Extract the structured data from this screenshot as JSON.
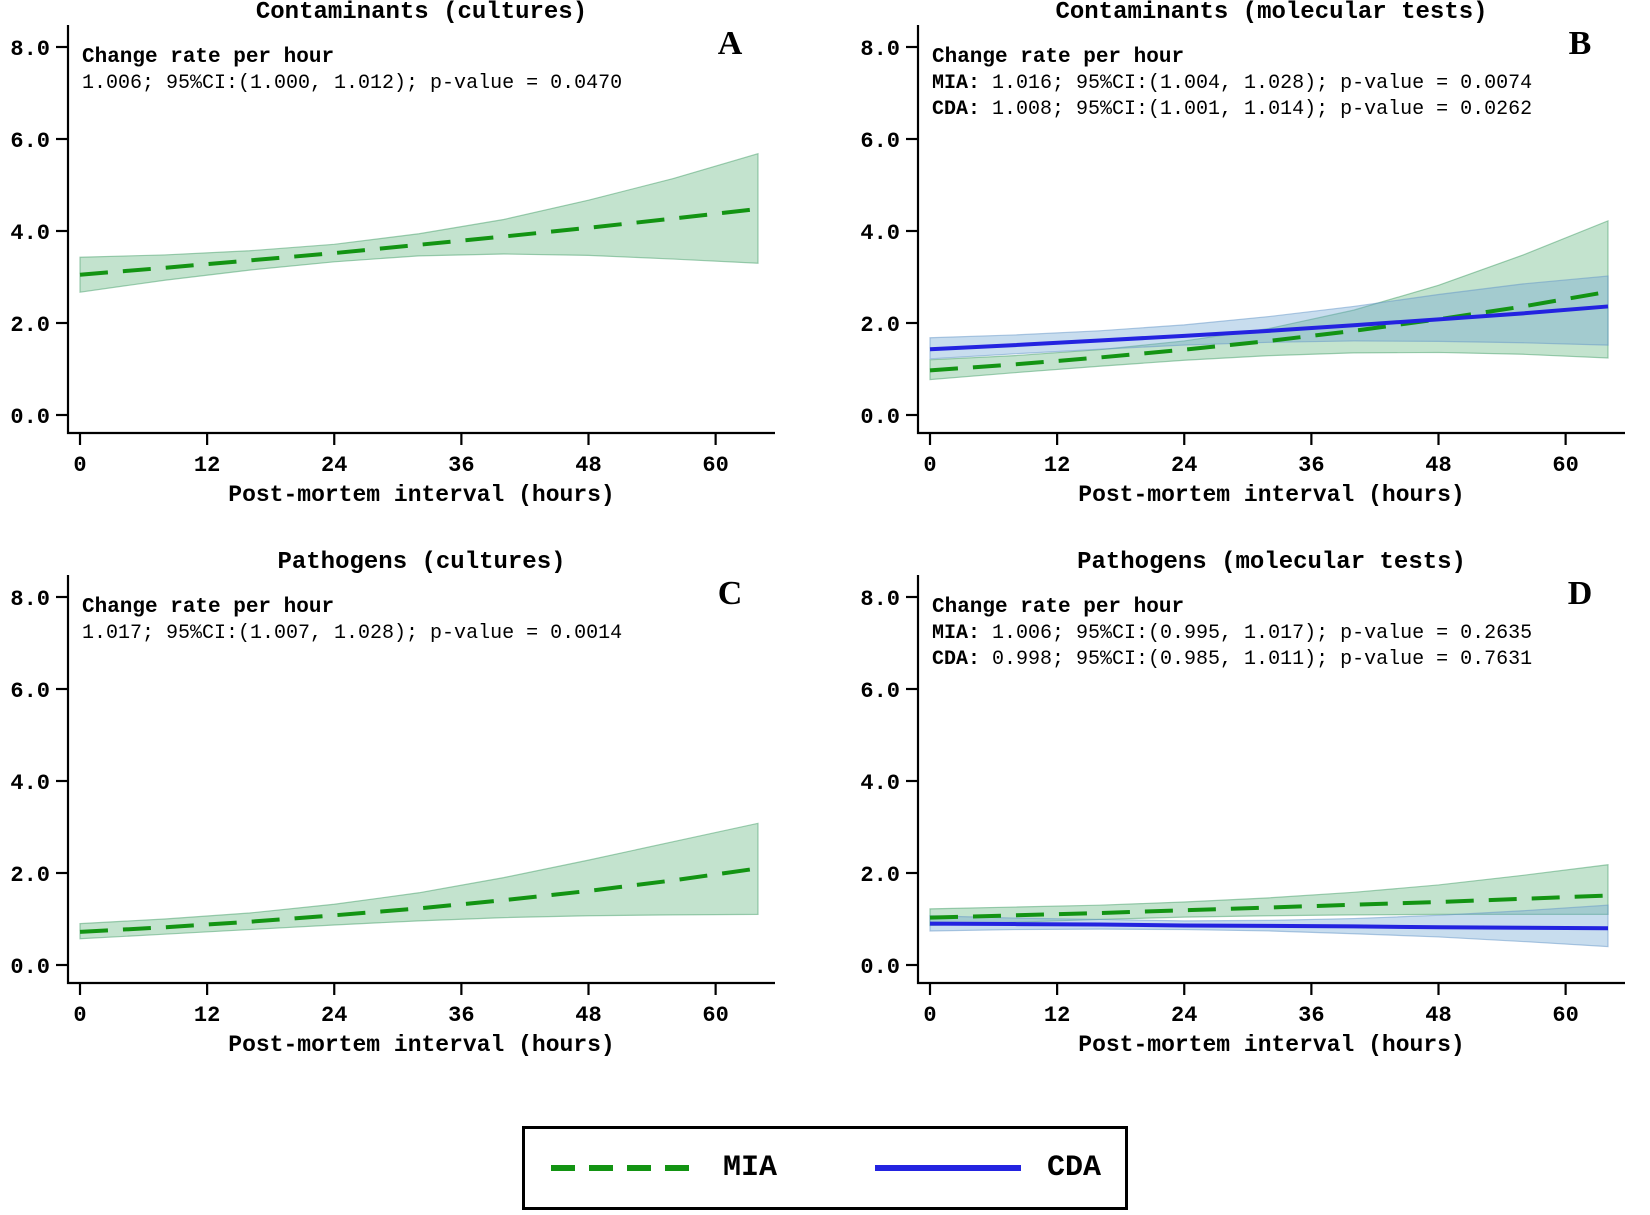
{
  "colors": {
    "mia": "#139413",
    "cda": "#2323e0",
    "mia_band": "rgba(82,174,116,0.35)",
    "cda_band": "rgba(110,165,210,0.38)",
    "mia_band_edge": "rgba(70,160,105,0.5)",
    "cda_band_edge": "rgba(100,150,200,0.5)",
    "title": "#1b3a6a",
    "axis": "#000000"
  },
  "legend": {
    "items": [
      {
        "label": "MIA",
        "style": "dashed",
        "color_key": "mia"
      },
      {
        "label": "CDA",
        "style": "solid",
        "color_key": "cda"
      }
    ]
  },
  "chart_data": [
    {
      "id": "A",
      "panel_letter": "A",
      "type": "line",
      "title": "Contaminants (cultures)",
      "xlabel": "Post-mortem interval (hours)",
      "xlim": [
        0,
        64
      ],
      "ylim": [
        0,
        8
      ],
      "x_ticks": {
        "values": [
          0,
          12,
          24,
          36,
          48,
          60
        ],
        "labels": [
          "0",
          "12",
          "24",
          "36",
          "48",
          "60"
        ]
      },
      "y_ticks": {
        "values": [
          0,
          2,
          4,
          6,
          8
        ],
        "labels": [
          "0.0",
          "2.0",
          "4.0",
          "6.0",
          "8.0"
        ]
      },
      "annotation": {
        "header": "Change rate per hour",
        "lines": [
          {
            "prefix": "",
            "text": "1.006; 95%CI:(1.000, 1.012); p-value = 0.0470"
          }
        ]
      },
      "x": [
        0,
        8,
        16,
        24,
        32,
        40,
        48,
        56,
        64
      ],
      "series": [
        {
          "name": "MIA",
          "style": "dashed",
          "color_key": "mia",
          "line": [
            3.05,
            3.2,
            3.36,
            3.52,
            3.7,
            3.88,
            4.07,
            4.27,
            4.48
          ],
          "lo": [
            2.67,
            2.93,
            3.15,
            3.33,
            3.46,
            3.5,
            3.47,
            3.39,
            3.3
          ],
          "hi": [
            3.43,
            3.48,
            3.57,
            3.71,
            3.94,
            4.25,
            4.67,
            5.14,
            5.68
          ]
        }
      ]
    },
    {
      "id": "B",
      "panel_letter": "B",
      "type": "line",
      "title": "Contaminants (molecular tests)",
      "xlabel": "Post-mortem interval (hours)",
      "xlim": [
        0,
        64
      ],
      "ylim": [
        0,
        8
      ],
      "x_ticks": {
        "values": [
          0,
          12,
          24,
          36,
          48,
          60
        ],
        "labels": [
          "0",
          "12",
          "24",
          "36",
          "48",
          "60"
        ]
      },
      "y_ticks": {
        "values": [
          0,
          2,
          4,
          6,
          8
        ],
        "labels": [
          "0.0",
          "2.0",
          "4.0",
          "6.0",
          "8.0"
        ]
      },
      "annotation": {
        "header": "Change rate per hour",
        "lines": [
          {
            "prefix": "MIA:",
            "text": " 1.016; 95%CI:(1.004, 1.028); p-value = 0.0074"
          },
          {
            "prefix": "CDA:",
            "text": " 1.008; 95%CI:(1.001, 1.014); p-value = 0.0262"
          }
        ]
      },
      "x": [
        0,
        8,
        16,
        24,
        32,
        40,
        48,
        56,
        64
      ],
      "series": [
        {
          "name": "MIA",
          "style": "dashed",
          "color_key": "mia",
          "line": [
            0.97,
            1.1,
            1.25,
            1.42,
            1.61,
            1.83,
            2.08,
            2.36,
            2.68
          ],
          "lo": [
            0.77,
            0.92,
            1.06,
            1.19,
            1.29,
            1.35,
            1.36,
            1.32,
            1.24
          ],
          "hi": [
            1.2,
            1.29,
            1.42,
            1.61,
            1.88,
            2.28,
            2.82,
            3.48,
            4.22
          ]
        },
        {
          "name": "CDA",
          "style": "solid",
          "color_key": "cda",
          "line": [
            1.43,
            1.52,
            1.62,
            1.72,
            1.83,
            1.95,
            2.08,
            2.21,
            2.36
          ],
          "lo": [
            1.22,
            1.33,
            1.43,
            1.52,
            1.58,
            1.61,
            1.6,
            1.57,
            1.52
          ],
          "hi": [
            1.68,
            1.74,
            1.83,
            1.96,
            2.14,
            2.36,
            2.62,
            2.85,
            3.02
          ]
        }
      ]
    },
    {
      "id": "C",
      "panel_letter": "C",
      "type": "line",
      "title": "Pathogens (cultures)",
      "xlabel": "Post-mortem interval (hours)",
      "xlim": [
        0,
        64
      ],
      "ylim": [
        0,
        8
      ],
      "x_ticks": {
        "values": [
          0,
          12,
          24,
          36,
          48,
          60
        ],
        "labels": [
          "0",
          "12",
          "24",
          "36",
          "48",
          "60"
        ]
      },
      "y_ticks": {
        "values": [
          0,
          2,
          4,
          6,
          8
        ],
        "labels": [
          "0.0",
          "2.0",
          "4.0",
          "6.0",
          "8.0"
        ]
      },
      "annotation": {
        "header": "Change rate per hour",
        "lines": [
          {
            "prefix": "",
            "text": "1.017; 95%CI:(1.007, 1.028); p-value = 0.0014"
          }
        ]
      },
      "x": [
        0,
        8,
        16,
        24,
        32,
        40,
        48,
        56,
        64
      ],
      "series": [
        {
          "name": "MIA",
          "style": "dashed",
          "color_key": "mia",
          "line": [
            0.72,
            0.82,
            0.94,
            1.08,
            1.23,
            1.41,
            1.61,
            1.84,
            2.1
          ],
          "lo": [
            0.57,
            0.67,
            0.77,
            0.87,
            0.96,
            1.03,
            1.07,
            1.09,
            1.1
          ],
          "hi": [
            0.9,
            1.0,
            1.13,
            1.32,
            1.57,
            1.9,
            2.28,
            2.68,
            3.08
          ]
        }
      ]
    },
    {
      "id": "D",
      "panel_letter": "D",
      "type": "line",
      "title": "Pathogens (molecular tests)",
      "xlabel": "Post-mortem interval (hours)",
      "xlim": [
        0,
        64
      ],
      "ylim": [
        0,
        8
      ],
      "x_ticks": {
        "values": [
          0,
          12,
          24,
          36,
          48,
          60
        ],
        "labels": [
          "0",
          "12",
          "24",
          "36",
          "48",
          "60"
        ]
      },
      "y_ticks": {
        "values": [
          0,
          2,
          4,
          6,
          8
        ],
        "labels": [
          "0.0",
          "2.0",
          "4.0",
          "6.0",
          "8.0"
        ]
      },
      "annotation": {
        "header": "Change rate per hour",
        "lines": [
          {
            "prefix": "MIA:",
            "text": " 1.006; 95%CI:(0.995, 1.017); p-value = 0.2635"
          },
          {
            "prefix": "CDA:",
            "text": " 0.998; 95%CI:(0.985, 1.011); p-value = 0.7631"
          }
        ]
      },
      "x": [
        0,
        8,
        16,
        24,
        32,
        40,
        48,
        56,
        64
      ],
      "series": [
        {
          "name": "MIA",
          "style": "dashed",
          "color_key": "mia",
          "line": [
            1.03,
            1.08,
            1.13,
            1.19,
            1.25,
            1.31,
            1.37,
            1.44,
            1.51
          ],
          "lo": [
            0.86,
            0.93,
            0.99,
            1.04,
            1.07,
            1.09,
            1.1,
            1.1,
            1.1
          ],
          "hi": [
            1.22,
            1.26,
            1.3,
            1.37,
            1.46,
            1.58,
            1.74,
            1.95,
            2.18
          ]
        },
        {
          "name": "CDA",
          "style": "solid",
          "color_key": "cda",
          "line": [
            0.9,
            0.89,
            0.88,
            0.86,
            0.85,
            0.84,
            0.82,
            0.81,
            0.8
          ],
          "lo": [
            0.74,
            0.77,
            0.78,
            0.77,
            0.74,
            0.68,
            0.61,
            0.51,
            0.4
          ],
          "hi": [
            1.07,
            1.02,
            0.99,
            0.96,
            0.97,
            1.01,
            1.08,
            1.18,
            1.3
          ]
        }
      ]
    }
  ]
}
